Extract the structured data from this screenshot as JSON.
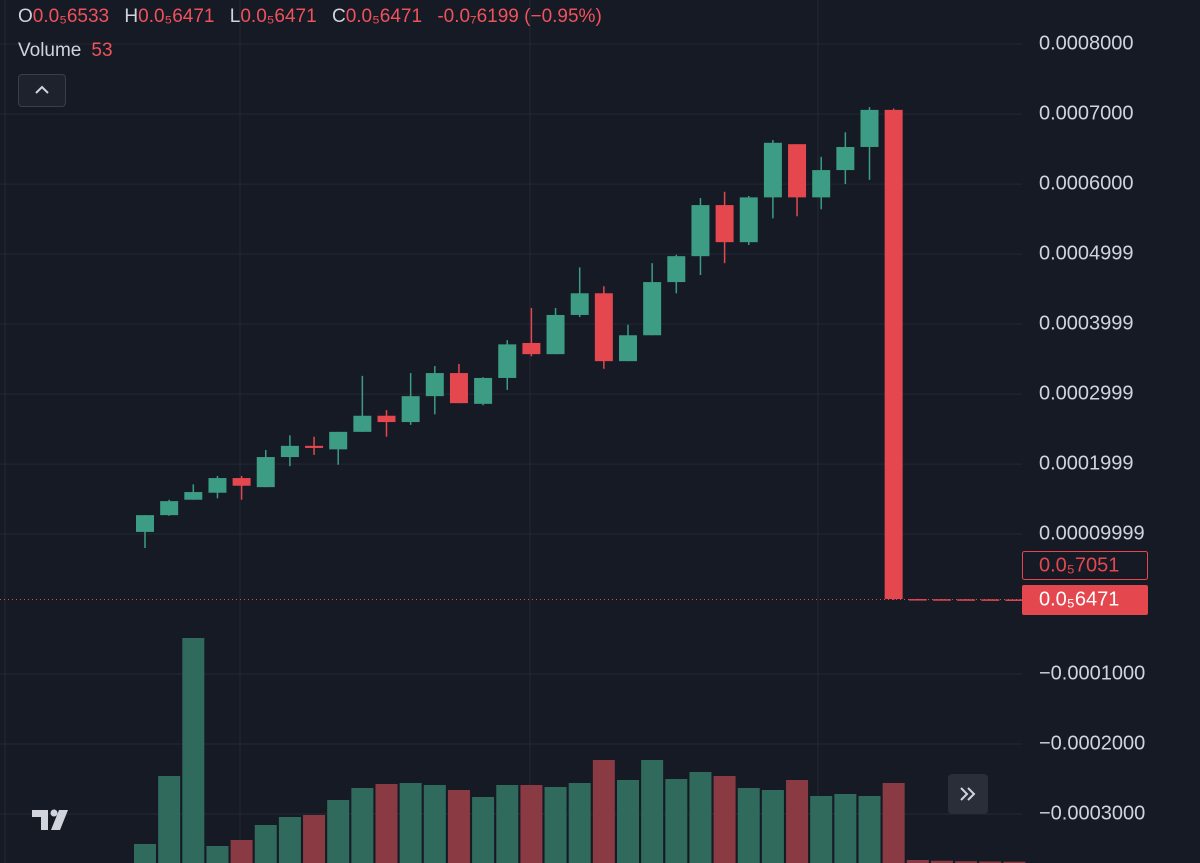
{
  "chart_data": {
    "type": "candlestick",
    "legend": {
      "open_label": "O",
      "open": "0.0₅6533",
      "high_label": "H",
      "high": "0.0₅6471",
      "low_label": "L",
      "low": "0.0₅6471",
      "close_label": "C",
      "close": "0.0₅6471",
      "change": "-0.0₇6199",
      "change_pct": "(−0.95%)"
    },
    "volume_label": "Volume",
    "price_labels": {
      "open_marker": "0.0₅7051",
      "last": "0.0₅6471"
    },
    "up_color": "#3c9c84",
    "down_color": "#e5474f",
    "volume_up_color": "#2f6a5d",
    "volume_down_color": "#8a3a42",
    "grid": true,
    "ylim": [
      -0.00037,
      0.000863
    ],
    "yticks": [
      {
        "value": 0.0008,
        "label": "0.0008000"
      },
      {
        "value": 0.0007,
        "label": "0.0007000"
      },
      {
        "value": 0.0006,
        "label": "0.0006000"
      },
      {
        "value": 0.0004999,
        "label": "0.0004999"
      },
      {
        "value": 0.0003999,
        "label": "0.0003999"
      },
      {
        "value": 0.0002999,
        "label": "0.0002999"
      },
      {
        "value": 0.0001999,
        "label": "0.0001999"
      },
      {
        "value": 9.999e-05,
        "label": "0.00009999"
      },
      {
        "value": -0.0001,
        "label": "−0.0001000"
      },
      {
        "value": -0.0002,
        "label": "−0.0002000"
      },
      {
        "value": -0.0003,
        "label": "−0.0003000"
      }
    ],
    "open": [
      0.000103,
      0.000127,
      0.000149,
      0.000159,
      0.00018,
      0.000167,
      0.00021,
      0.000226,
      0.000221,
      0.000246,
      0.000269,
      0.00026,
      0.000297,
      0.00033,
      0.000286,
      0.000323,
      0.000373,
      0.000357,
      0.000413,
      0.000444,
      0.000347,
      0.000384,
      0.00046,
      0.000497,
      0.00057,
      0.000517,
      0.000581,
      0.000657,
      0.000581,
      0.00062,
      0.000653,
      0.000706,
      7.1e-06,
      6.9e-06,
      6.8e-06,
      6.7e-06,
      6.533e-06
    ],
    "high": [
      0.000127,
      0.000149,
      0.000171,
      0.000183,
      0.000183,
      0.00022,
      0.000241,
      0.000239,
      0.000246,
      0.000326,
      0.000277,
      0.00033,
      0.00034,
      0.000343,
      0.000324,
      0.000377,
      0.000423,
      0.000423,
      0.000481,
      0.000454,
      0.000399,
      0.000487,
      0.000499,
      0.00058,
      0.000589,
      0.000583,
      0.000663,
      0.000657,
      0.000639,
      0.000674,
      0.00071,
      0.000708,
      7.5e-06,
      7.1e-06,
      7e-06,
      6.9e-06,
      6.471e-06
    ],
    "low": [
      8e-05,
      0.000126,
      0.000149,
      0.000151,
      0.000149,
      0.000167,
      0.000197,
      0.000213,
      0.000199,
      0.000246,
      0.000239,
      0.000256,
      0.000271,
      0.000287,
      0.000284,
      0.000306,
      0.000354,
      0.000357,
      0.00041,
      0.000336,
      0.000347,
      0.000384,
      0.000444,
      0.00047,
      0.000487,
      0.000513,
      0.000551,
      0.000554,
      0.000564,
      0.0006,
      0.000606,
      6e-06,
      6.6e-06,
      6.6e-06,
      6.5e-06,
      6.4e-06,
      6.471e-06
    ],
    "close": [
      0.000127,
      0.000147,
      0.00016,
      0.00018,
      0.000169,
      0.00021,
      0.000226,
      0.000223,
      0.000246,
      0.000269,
      0.00026,
      0.000297,
      0.00033,
      0.000287,
      0.000323,
      0.000371,
      0.000357,
      0.000413,
      0.000444,
      0.000347,
      0.000384,
      0.00046,
      0.000497,
      0.00057,
      0.000517,
      0.000581,
      0.000659,
      0.000581,
      0.00062,
      0.000653,
      0.000706,
      7.1e-06,
      6.9e-06,
      6.8e-06,
      6.7e-06,
      6.5e-06,
      6.471e-06
    ],
    "volume": [
      760,
      3480,
      9000,
      680,
      920,
      1520,
      1840,
      1920,
      2520,
      3000,
      3160,
      3200,
      3120,
      2920,
      2640,
      3120,
      3120,
      3040,
      3200,
      4120,
      3320,
      4120,
      3360,
      3640,
      3480,
      3000,
      2920,
      3320,
      2680,
      2760,
      2680,
      3200,
      120,
      90,
      70,
      60,
      53
    ]
  }
}
